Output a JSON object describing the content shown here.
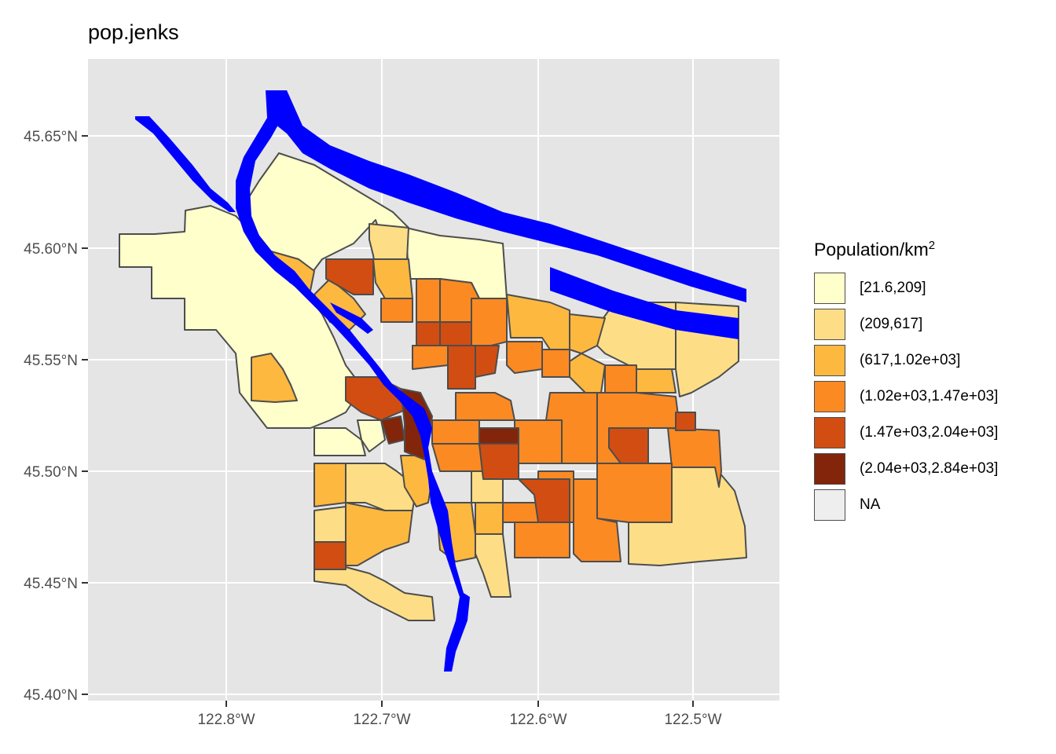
{
  "title": "pop.jenks",
  "axes": {
    "y_ticks": [
      "45.65°N",
      "45.60°N",
      "45.55°N",
      "45.50°N",
      "45.45°N",
      "45.40°N"
    ],
    "x_ticks": [
      "122.8°W",
      "122.7°W",
      "122.6°W",
      "122.5°W"
    ]
  },
  "legend": {
    "title_main": "Population/km",
    "title_sup": "2",
    "items": [
      {
        "label": "[21.6,209]",
        "color": "#FFFFCC"
      },
      {
        "label": "(209,617]",
        "color": "#FDDE86"
      },
      {
        "label": "(617,1.02e+03]",
        "color": "#FDB840"
      },
      {
        "label": "(1.02e+03,1.47e+03]",
        "color": "#FC8A23"
      },
      {
        "label": "(1.47e+03,2.04e+03]",
        "color": "#D24D12"
      },
      {
        "label": "(2.04e+03,2.84e+03]",
        "color": "#82250A"
      },
      {
        "label": "NA",
        "color": "#EEEEEE"
      }
    ]
  },
  "colors": {
    "panel": "#E5E5E5",
    "grid": "#FFFFFF",
    "river": "#0000FF",
    "border": "#4D4D4D"
  }
}
